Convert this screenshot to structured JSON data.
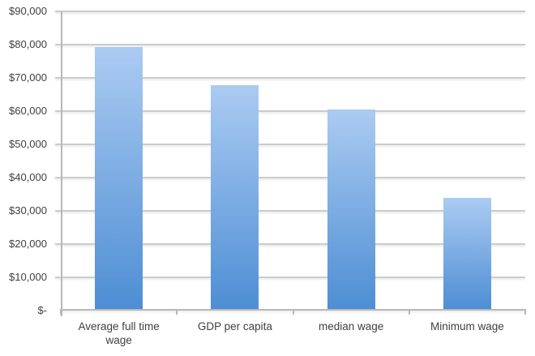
{
  "chart_data": {
    "type": "bar",
    "title": "",
    "xlabel": "",
    "ylabel": "",
    "categories": [
      "Average full time wage",
      "GDP per capita",
      "median wage",
      "Minimum wage"
    ],
    "values": [
      78800,
      67200,
      60000,
      33300
    ],
    "ylim": [
      0,
      90000
    ],
    "y_ticks": [
      0,
      10000,
      20000,
      30000,
      40000,
      50000,
      60000,
      70000,
      80000,
      90000
    ],
    "y_tick_labels": [
      "$-",
      "$10,000",
      "$20,000",
      "$30,000",
      "$40,000",
      "$50,000",
      "$60,000",
      "$70,000",
      "$80,000",
      "$90,000"
    ],
    "legend_position": "none",
    "grid": "horizontal",
    "colors": {
      "bar_gradient_top": "#abcbf2",
      "bar_gradient_bottom": "#4e8ed4",
      "gridline": "#cbcbcb",
      "axis": "#b8b8b8",
      "text": "#3f3f3f",
      "background": "#ffffff"
    }
  }
}
